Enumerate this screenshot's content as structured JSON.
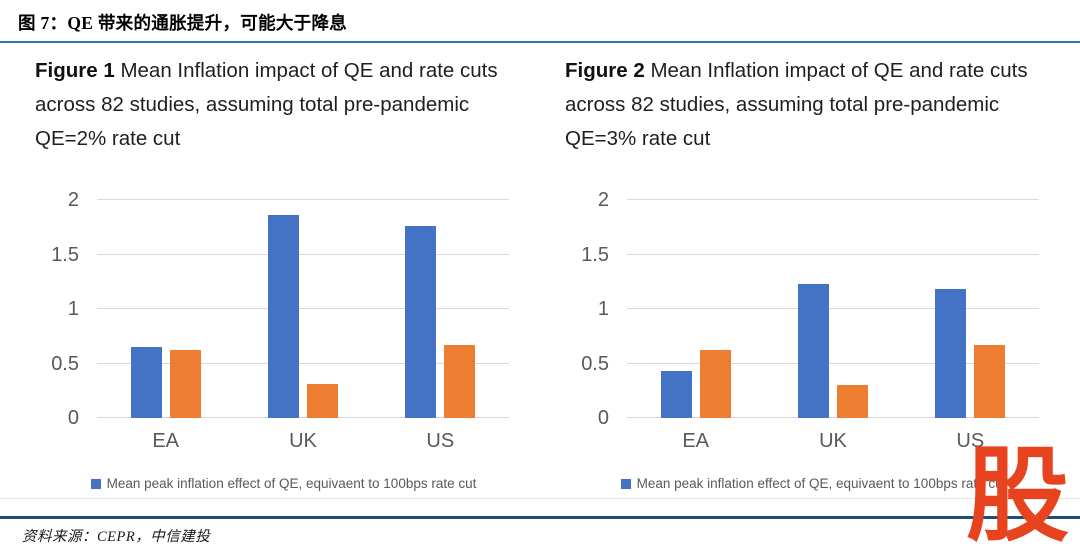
{
  "header": {
    "caption": "图 7：QE 带来的通胀提升，可能大于降息"
  },
  "footer": {
    "source": "资料来源：CEPR，中信建投"
  },
  "watermark": {
    "text": "股",
    "color": "#E8431F"
  },
  "colors": {
    "qe_bar": "#4472C4",
    "rate_cut_bar": "#ED7D31",
    "caption_rule": "#2E75B6",
    "bottom_rule": "#1F4E79",
    "gridline": "#D9D9D9",
    "axis_text": "#595959"
  },
  "charts": [
    {
      "title_bold": "Figure 1",
      "title_rest": " Mean Inflation impact of QE and rate cuts across 82 studies, assuming total pre-pandemic QE=2% rate cut",
      "legend": "Mean peak inflation effect of QE, equivaent to 100bps rate cut"
    },
    {
      "title_bold": "Figure 2",
      "title_rest": " Mean Inflation impact of QE and rate cuts across 82 studies, assuming total pre-pandemic QE=3% rate cut",
      "legend": "Mean peak inflation effect of QE, equivaent to 100bps rate cut"
    }
  ],
  "chart_data": [
    {
      "type": "bar",
      "title": "Figure 1 Mean Inflation impact of QE and rate cuts across 82 studies, assuming total pre-pandemic QE=2% rate cut",
      "categories": [
        "EA",
        "UK",
        "US"
      ],
      "series": [
        {
          "name": "Mean peak inflation effect of QE, equivaent to 100bps rate cut",
          "color": "#4472C4",
          "values": [
            0.65,
            1.86,
            1.76
          ]
        },
        {
          "name": "",
          "color": "#ED7D31",
          "values": [
            0.62,
            0.31,
            0.67
          ]
        }
      ],
      "xlabel": "",
      "ylabel": "",
      "ylim": [
        0,
        2
      ],
      "yticks": [
        0,
        0.5,
        1,
        1.5,
        2
      ],
      "grid": true,
      "legend_position": "bottom"
    },
    {
      "type": "bar",
      "title": "Figure 2 Mean Inflation impact of QE and rate cuts across 82 studies, assuming total pre-pandemic QE=3% rate cut",
      "categories": [
        "EA",
        "UK",
        "US"
      ],
      "series": [
        {
          "name": "Mean peak inflation effect of QE, equivaent to 100bps rate cut",
          "color": "#4472C4",
          "values": [
            0.43,
            1.23,
            1.18
          ]
        },
        {
          "name": "",
          "color": "#ED7D31",
          "values": [
            0.62,
            0.3,
            0.67
          ]
        }
      ],
      "xlabel": "",
      "ylabel": "",
      "ylim": [
        0,
        2
      ],
      "yticks": [
        0,
        0.5,
        1,
        1.5,
        2
      ],
      "grid": true,
      "legend_position": "bottom"
    }
  ]
}
